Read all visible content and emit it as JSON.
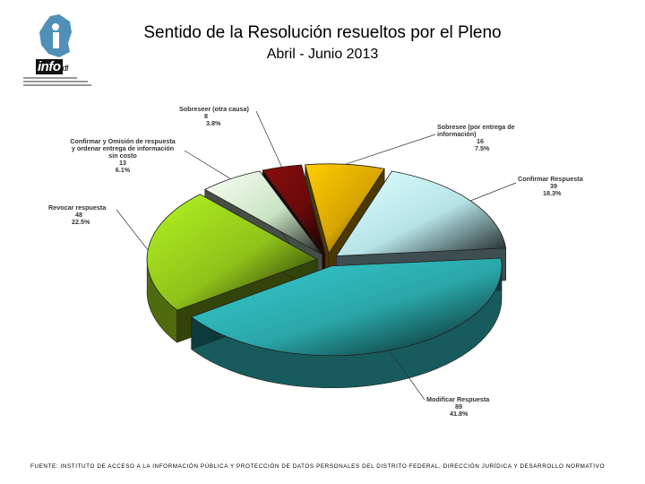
{
  "header": {
    "title": "Sentido de la Resolución resueltos por el Pleno",
    "subtitle": "Abril - Junio 2013",
    "logo_text": "info",
    "logo_suffix": "df"
  },
  "footer": {
    "source": "FUENTE: INSTITUTO DE ACCESO A LA INFORMACIÓN PÚBLICA Y PROTECCIÓN DE DATOS PERSONALES DEL DISTRITO FEDERAL, DIRECCIÓN JURÍDICA Y DESARROLLO NORMATIVO"
  },
  "chart_data": {
    "type": "pie",
    "title": "Sentido de la Resolución resueltos por el Pleno",
    "subtitle": "Abril - Junio 2013",
    "style": "3d-exploded",
    "slices": [
      {
        "label": "Sobresee (por entrega de información)",
        "value": 16,
        "percent": "7.5%",
        "color": "#d6a400"
      },
      {
        "label": "Confirmar Respuesta",
        "value": 39,
        "percent": "18.3%",
        "color": "#b5e3e6"
      },
      {
        "label": "Modificar Respuesta",
        "value": 89,
        "percent": "41.8%",
        "color": "#2aa6a8"
      },
      {
        "label": "Revocar respuesta",
        "value": 48,
        "percent": "22.5%",
        "color": "#8fc21a"
      },
      {
        "label": "Confirmar y Omisión de respuesta y ordenar entrega de información sin costo",
        "value": 13,
        "percent": "6.1%",
        "color": "#c9e3c4"
      },
      {
        "label": "Sobreseer (otra causa)",
        "value": 8,
        "percent": "3.8%",
        "color": "#6b0a0a"
      }
    ]
  },
  "labels": {
    "sobresee_entrega": {
      "line1": "Sobresee (por entrega de",
      "line2": "información)",
      "value": "16",
      "percent": "7.5%"
    },
    "confirmar": {
      "line1": "Confirmar Respuesta",
      "value": "39",
      "percent": "18.3%"
    },
    "modificar": {
      "line1": "Modificar Respuesta",
      "value": "89",
      "percent": "41.8%"
    },
    "revocar": {
      "line1": "Revocar respuesta",
      "value": "48",
      "percent": "22.5%"
    },
    "omision": {
      "line1": "Confirmar y Omisión de respuesta",
      "line2": "y ordenar entrega de información",
      "line3": "sin costo",
      "value": "13",
      "percent": "6.1%"
    },
    "sobreseer_otra": {
      "line1": "Sobreseer (otra causa)",
      "value": "8",
      "percent": "3.8%"
    }
  }
}
